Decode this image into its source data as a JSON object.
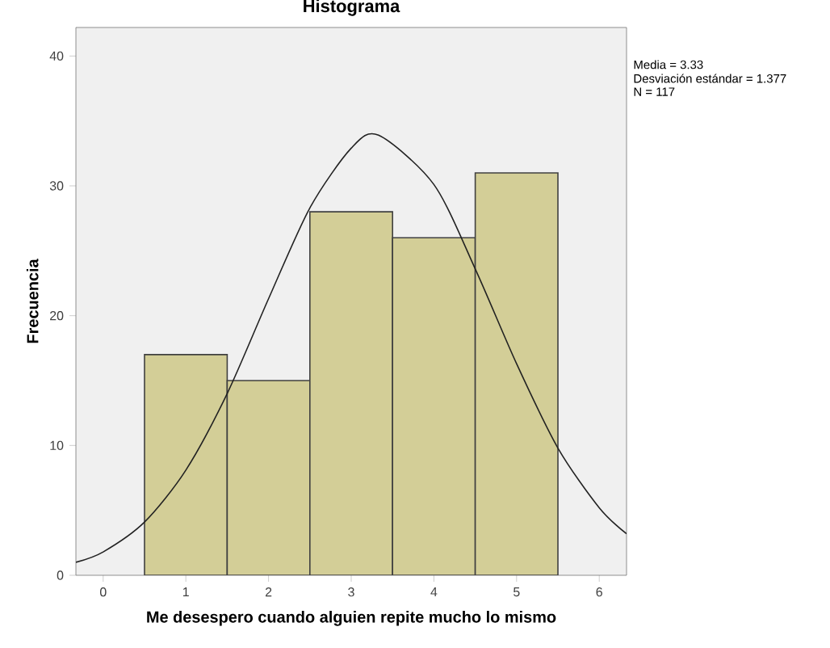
{
  "chart_data": {
    "type": "histogram",
    "title": "Histograma",
    "xlabel": "Me desespero cuando alguien repite mucho lo mismo",
    "ylabel": "Frecuencia",
    "bins": [
      0.5,
      1.5,
      2.5,
      3.5,
      4.5,
      5.5
    ],
    "values": [
      17,
      15,
      28,
      26,
      31
    ],
    "color": "#d3ce97",
    "series": [
      {
        "type": "line",
        "color": "#222222",
        "x": [
          -0.33,
          0,
          0.5,
          1,
          1.5,
          2,
          2.5,
          3,
          3.33,
          4,
          4.5,
          5,
          5.5,
          6,
          6.33
        ],
        "values": [
          1.0,
          1.8,
          4.1,
          8.1,
          14.0,
          21.3,
          28.3,
          32.9,
          33.9,
          30.1,
          23.6,
          16.3,
          9.8,
          5.2,
          3.2
        ]
      }
    ],
    "annotations": [
      "Media = 3.33",
      "Desviación estándar = 1.377",
      "N = 117"
    ],
    "xlim": [
      -0.33,
      6.33
    ],
    "ylim": [
      0,
      42.2
    ],
    "xticks": [
      0,
      1,
      2,
      3,
      4,
      5,
      6
    ],
    "yticks": [
      0,
      10,
      20,
      30,
      40
    ],
    "grid": false
  }
}
